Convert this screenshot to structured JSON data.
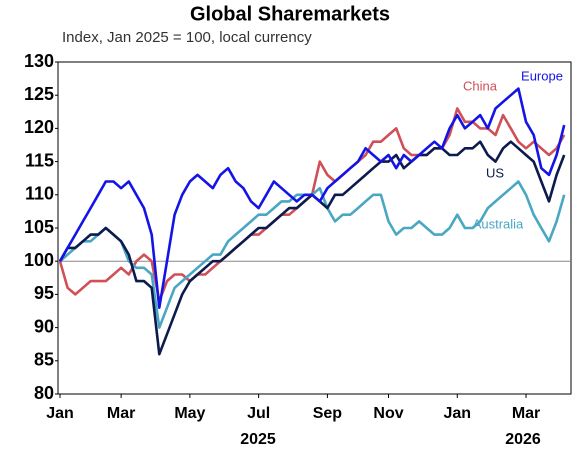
{
  "chart_data": {
    "type": "line",
    "title": "Global Sharemarkets",
    "subtitle": "Index, Jan 2025 = 100, local currency",
    "categories": [
      "Jan",
      null,
      null,
      null,
      null,
      null,
      null,
      null,
      "Mar",
      null,
      null,
      null,
      null,
      null,
      null,
      null,
      null,
      "May",
      null,
      null,
      null,
      null,
      null,
      null,
      null,
      null,
      "Jul",
      null,
      null,
      null,
      null,
      null,
      null,
      null,
      null,
      "Sep",
      null,
      null,
      null,
      null,
      null,
      null,
      null,
      "Nov",
      null,
      null,
      null,
      null,
      null,
      null,
      null,
      null,
      "Jan",
      null,
      null,
      null,
      null,
      null,
      null,
      null,
      null,
      "Mar",
      null,
      null,
      null,
      null,
      null
    ],
    "years": [
      "2025",
      "2026"
    ],
    "ylim": [
      80,
      130
    ],
    "yticks": [
      80,
      85,
      90,
      95,
      100,
      105,
      110,
      115,
      120,
      125,
      130
    ],
    "reference_line": 100,
    "series": [
      {
        "name": "China",
        "color": "#cf5057",
        "values": [
          100,
          96,
          95,
          96,
          97,
          97,
          97,
          98,
          99,
          98,
          100,
          101,
          100,
          94,
          97,
          98,
          98,
          97,
          98,
          98,
          99,
          100,
          101,
          102,
          103,
          104,
          104,
          105,
          106,
          107,
          107,
          108,
          109,
          110,
          115,
          113,
          112,
          113,
          114,
          115,
          116,
          118,
          118,
          119,
          120,
          117,
          116,
          116,
          116,
          117,
          117,
          119,
          123,
          121,
          121,
          120,
          120,
          119,
          122,
          120,
          118,
          117,
          118,
          117,
          116,
          117,
          119
        ]
      },
      {
        "name": "Australia",
        "color": "#49a7c3",
        "values": [
          100,
          101,
          102,
          103,
          103,
          104,
          105,
          104,
          103,
          100,
          99,
          99,
          98,
          90,
          93,
          96,
          97,
          98,
          99,
          100,
          101,
          101,
          103,
          104,
          105,
          106,
          107,
          107,
          108,
          109,
          109,
          110,
          110,
          110,
          111,
          108,
          106,
          107,
          107,
          108,
          109,
          110,
          110,
          106,
          104,
          105,
          105,
          106,
          105,
          104,
          104,
          105,
          107,
          105,
          105,
          106,
          108,
          109,
          110,
          111,
          112,
          110,
          107,
          105,
          103,
          106,
          110
        ]
      },
      {
        "name": "US",
        "color": "#0b1b4d",
        "values": [
          100,
          102,
          102,
          103,
          104,
          104,
          105,
          104,
          103,
          101,
          97,
          97,
          96,
          86,
          89,
          92,
          95,
          97,
          98,
          99,
          100,
          100,
          101,
          102,
          103,
          104,
          105,
          105,
          106,
          107,
          108,
          108,
          109,
          110,
          109,
          108,
          110,
          110,
          111,
          112,
          113,
          114,
          115,
          115,
          116,
          114,
          115,
          116,
          116,
          117,
          117,
          116,
          116,
          117,
          117,
          118,
          116,
          115,
          117,
          118,
          117,
          116,
          115,
          112,
          109,
          113,
          116
        ]
      },
      {
        "name": "Europe",
        "color": "#1414e6",
        "values": [
          100,
          102,
          104,
          106,
          108,
          110,
          112,
          112,
          111,
          112,
          110,
          108,
          104,
          93,
          100,
          107,
          110,
          112,
          113,
          112,
          111,
          113,
          114,
          112,
          111,
          109,
          108,
          110,
          112,
          111,
          110,
          109,
          110,
          110,
          109,
          111,
          112,
          113,
          114,
          115,
          117,
          116,
          115,
          116,
          114,
          116,
          115,
          116,
          117,
          118,
          117,
          120,
          122,
          120,
          121,
          122,
          120,
          123,
          124,
          125,
          126,
          121,
          119,
          114,
          113,
          116,
          120.5
        ]
      }
    ]
  }
}
